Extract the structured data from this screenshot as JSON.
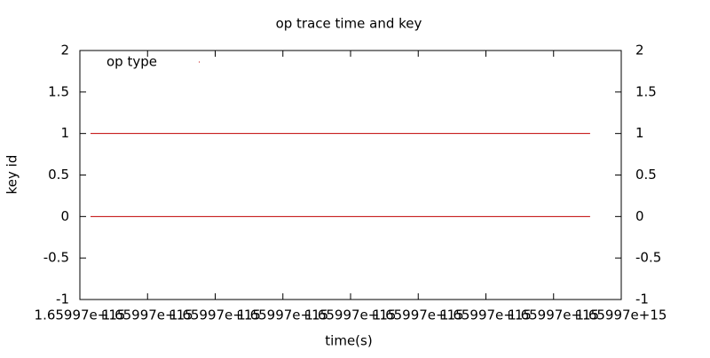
{
  "chart_data": {
    "type": "line",
    "title": "op trace time and key",
    "xlabel": "time(s)",
    "ylabel": "key id",
    "xlim": [
      1659970000000000,
      1659971600000000
    ],
    "xticks": [
      {
        "value": 1659970000000000,
        "label": "1.65997e+15"
      },
      {
        "value": 1659970200000000,
        "label": "1.65997e+15"
      },
      {
        "value": 1659970400000000,
        "label": "1.65997e+15"
      },
      {
        "value": 1659970600000000,
        "label": "1.65997e+15"
      },
      {
        "value": 1659970800000000,
        "label": "1.65997e+15"
      },
      {
        "value": 1659971000000000,
        "label": "1.65997e+15"
      },
      {
        "value": 1659971200000000,
        "label": "1.65997e+15"
      },
      {
        "value": 1659971400000000,
        "label": "1.65997e+15"
      },
      {
        "value": 1659971600000000,
        "label": "1.65997e+15"
      }
    ],
    "ylim": [
      -1,
      2
    ],
    "yticks": [
      -1,
      -0.5,
      0,
      0.5,
      1,
      1.5,
      2
    ],
    "y2lim": [
      -1,
      2
    ],
    "y2ticks": [
      -1,
      -0.5,
      0,
      0.5,
      1,
      1.5,
      2
    ],
    "legend": "top-left",
    "series": [
      {
        "name": "op type",
        "color": "#c00000",
        "x": [
          1659970031500000,
          1659971508000000,
          1659971508000000,
          1659970031500000,
          1659971508000000
        ],
        "values": [
          1,
          1,
          null,
          0,
          0
        ]
      }
    ]
  }
}
